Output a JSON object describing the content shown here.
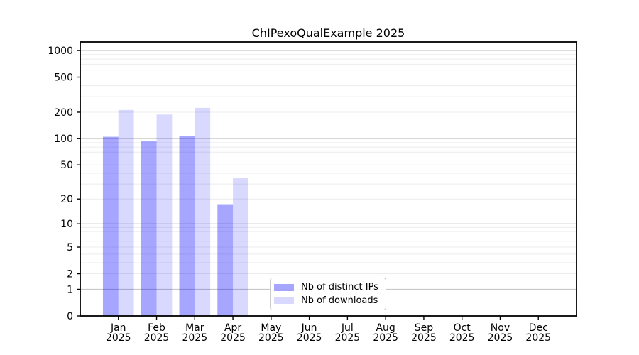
{
  "chart_data": {
    "type": "bar",
    "title": "ChIPexoQualExample 2025",
    "categories": [
      "Jan",
      "Feb",
      "Mar",
      "Apr",
      "May",
      "Jun",
      "Jul",
      "Aug",
      "Sep",
      "Oct",
      "Nov",
      "Dec"
    ],
    "category_sub_label": "2025",
    "series": [
      {
        "name": "Nb of distinct IPs",
        "fill": "rgba(0,0,255,0.35)",
        "swatch_hex": "#a8a8f2",
        "values": [
          105,
          93,
          107,
          17,
          null,
          null,
          null,
          null,
          null,
          null,
          null,
          null
        ]
      },
      {
        "name": "Nb of downloads",
        "fill": "rgba(0,0,255,0.15)",
        "swatch_hex": "#d9d9f8",
        "values": [
          212,
          188,
          224,
          35,
          null,
          null,
          null,
          null,
          null,
          null,
          null,
          null
        ]
      }
    ],
    "yscale": "log1p",
    "yticks": [
      1000,
      500,
      200,
      100,
      50,
      20,
      10,
      5,
      2,
      1,
      0
    ],
    "ylim": [
      0,
      1250
    ],
    "grid": true,
    "legend_position": "lower-center",
    "xlabel": "",
    "ylabel": ""
  },
  "colors": {
    "major_grid": "#c8c8c8",
    "minor_grid": "#ececec",
    "axis": "#000000",
    "text": "#000000",
    "background": "#ffffff"
  }
}
